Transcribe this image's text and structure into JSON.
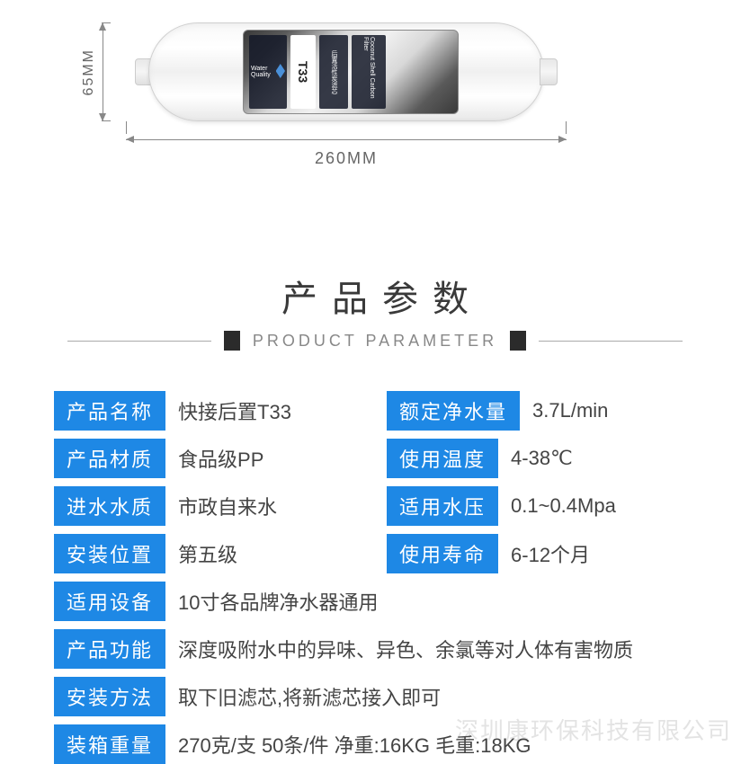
{
  "dimensions": {
    "height_label": "65MM",
    "width_label": "260MM"
  },
  "filter_label": {
    "brand_line": "Water Quality",
    "model": "T33",
    "cn_text": "后置活性炭滤芯",
    "en_text": "Coconut Shell Carbon Filter"
  },
  "section": {
    "title_cn": "产品参数",
    "title_en": "PRODUCT  PARAMETER"
  },
  "colors": {
    "label_bg": "#1e88e5",
    "label_text": "#ffffff",
    "value_text": "#444444",
    "title_text": "#3a3a3a",
    "subtitle_text": "#888888"
  },
  "params": {
    "rows": [
      {
        "type": "two",
        "l_label": "产品名称",
        "l_value": "快接后置T33",
        "r_label": "额定净水量",
        "r_value": "3.7L/min"
      },
      {
        "type": "two",
        "l_label": "产品材质",
        "l_value": "食品级PP",
        "r_label": "使用温度",
        "r_value": "4-38℃"
      },
      {
        "type": "two",
        "l_label": "进水水质",
        "l_value": "市政自来水",
        "r_label": "适用水压",
        "r_value": "0.1~0.4Mpa"
      },
      {
        "type": "two",
        "l_label": "安装位置",
        "l_value": "第五级",
        "r_label": "使用寿命",
        "r_value": "6-12个月"
      },
      {
        "type": "one",
        "l_label": "适用设备",
        "l_value": "10寸各品牌净水器通用"
      },
      {
        "type": "one",
        "l_label": "产品功能",
        "l_value": "深度吸附水中的异味、异色、余氯等对人体有害物质"
      },
      {
        "type": "one",
        "l_label": "安装方法",
        "l_value": "取下旧滤芯,将新滤芯接入即可"
      },
      {
        "type": "one",
        "l_label": "装箱重量",
        "l_value": "270克/支   50条/件   净重:16KG  毛重:18KG"
      }
    ]
  },
  "watermark": "深圳康环保科技有限公司"
}
